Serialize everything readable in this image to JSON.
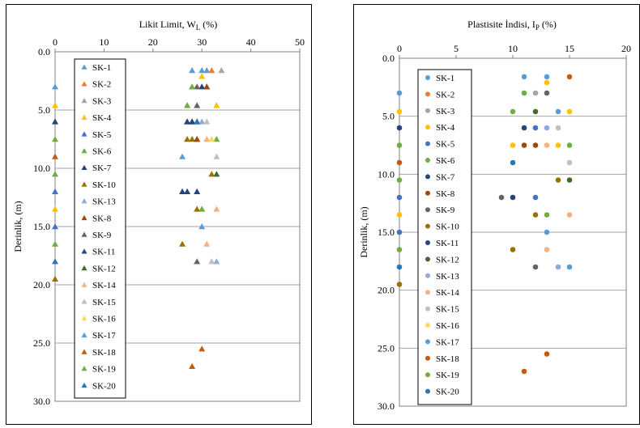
{
  "chart_data": [
    {
      "type": "scatter",
      "title": "Likit Limit, W",
      "title_sub": "L",
      "title_unit": " (%)",
      "ylabel": "Derinlik, (m)",
      "xlim": [
        0,
        50
      ],
      "ylim": [
        0,
        30
      ],
      "y_inverted": true,
      "x_axis_position": "top",
      "xticks": [
        "0",
        "10",
        "20",
        "30",
        "40",
        "50"
      ],
      "yticks": [
        "0.0",
        "5.0",
        "10.0",
        "15.0",
        "20.0",
        "25.0",
        "30.0"
      ],
      "grid": "horizontal",
      "legend_position": "left-inside",
      "marker": "triangle",
      "series": [
        {
          "name": "SK-1",
          "color": "#5b9bd5",
          "points": [
            [
              28,
              1.6
            ],
            [
              30,
              1.6
            ],
            [
              31,
              1.6
            ]
          ]
        },
        {
          "name": "SK-2",
          "color": "#ed7d31",
          "points": [
            [
              32,
              1.6
            ]
          ]
        },
        {
          "name": "SK-3",
          "color": "#a5a5a5",
          "points": [
            [
              34,
              1.6
            ]
          ]
        },
        {
          "name": "SK-4",
          "color": "#ffc000",
          "points": [
            [
              30,
              2.1
            ],
            [
              33,
              4.6
            ],
            [
              30,
              13.5
            ]
          ]
        },
        {
          "name": "SK-5",
          "color": "#4472c4",
          "points": [
            [
              27,
              6.0
            ],
            [
              28,
              6.0
            ],
            [
              31,
              3.0
            ]
          ]
        },
        {
          "name": "SK-6",
          "color": "#70ad47",
          "points": [
            [
              28,
              3.0
            ],
            [
              27,
              4.6
            ],
            [
              33,
              7.5
            ],
            [
              30,
              13.5
            ]
          ]
        },
        {
          "name": "SK-7",
          "color": "#264478",
          "points": [
            [
              30,
              3.0
            ],
            [
              27,
              6.0
            ],
            [
              29,
              6.0
            ],
            [
              27,
              12.0
            ],
            [
              26,
              12.0
            ]
          ]
        },
        {
          "name": "SK-10",
          "color": "#997300",
          "points": [
            [
              27,
              7.5
            ],
            [
              28,
              7.5
            ],
            [
              29,
              7.5
            ],
            [
              32,
              10.5
            ],
            [
              29,
              13.5
            ],
            [
              26,
              16.5
            ]
          ]
        },
        {
          "name": "SK-13",
          "color": "#8faadc",
          "points": [
            [
              30,
              6.0
            ],
            [
              33,
              18.0
            ]
          ]
        },
        {
          "name": "SK-8",
          "color": "#9e480e",
          "points": [
            [
              31,
              3.0
            ],
            [
              29,
              7.5
            ]
          ]
        },
        {
          "name": "SK-9",
          "color": "#636363",
          "points": [
            [
              29,
              3.0
            ],
            [
              29,
              4.6
            ],
            [
              29,
              18.0
            ]
          ]
        },
        {
          "name": "SK-11",
          "color": "#264478",
          "points": [
            [
              28,
              6.0
            ],
            [
              29,
              12.0
            ]
          ]
        },
        {
          "name": "SK-12",
          "color": "#43682b",
          "points": [
            [
              33,
              10.5
            ]
          ]
        },
        {
          "name": "SK-14",
          "color": "#f4b183",
          "points": [
            [
              31,
              7.5
            ],
            [
              33,
              13.5
            ],
            [
              31,
              16.5
            ]
          ]
        },
        {
          "name": "SK-15",
          "color": "#bfbfbf",
          "points": [
            [
              31,
              6.0
            ],
            [
              33,
              9.0
            ],
            [
              32,
              18.0
            ]
          ]
        },
        {
          "name": "SK-16",
          "color": "#ffd966",
          "points": [
            [
              32,
              7.5
            ]
          ]
        },
        {
          "name": "SK-17",
          "color": "#5b9bd5",
          "points": [
            [
              30,
              15.0
            ],
            [
              26,
              9.0
            ]
          ]
        },
        {
          "name": "SK-18",
          "color": "#c55a11",
          "points": [
            [
              30,
              25.5
            ],
            [
              28,
              27.0
            ]
          ]
        },
        {
          "name": "SK-19",
          "color": "#70ad47",
          "points": [
            [
              27,
              4.6
            ],
            [
              28,
              3.0
            ]
          ]
        },
        {
          "name": "SK-20",
          "color": "#2e75b6",
          "points": [
            [
              29,
              6.0
            ]
          ]
        }
      ],
      "axis_markers": [
        {
          "color": "#5b9bd5",
          "y": 3.0
        },
        {
          "color": "#ffc000",
          "y": 4.6
        },
        {
          "color": "#264478",
          "y": 6.0
        },
        {
          "color": "#70ad47",
          "y": 7.5
        },
        {
          "color": "#c55a11",
          "y": 9.0
        },
        {
          "color": "#70ad47",
          "y": 10.5
        },
        {
          "color": "#4472c4",
          "y": 12.0
        },
        {
          "color": "#ffc000",
          "y": 13.5
        },
        {
          "color": "#4472c4",
          "y": 15.0
        },
        {
          "color": "#70ad47",
          "y": 16.5
        },
        {
          "color": "#2e75b6",
          "y": 18.0
        },
        {
          "color": "#997300",
          "y": 19.5
        }
      ]
    },
    {
      "type": "scatter",
      "title": "Plastisite İndisi, I",
      "title_sub": "P",
      "title_unit": " (%)",
      "ylabel": "Derinlik, (m)",
      "xlim": [
        0,
        20
      ],
      "ylim": [
        0,
        30
      ],
      "y_inverted": true,
      "x_axis_position": "top",
      "xticks": [
        "0",
        "5",
        "10",
        "15",
        "20"
      ],
      "yticks": [
        "0.0",
        "5.0",
        "10.0",
        "15.0",
        "20.0",
        "25.0",
        "30.0"
      ],
      "grid": "horizontal",
      "legend_position": "left-inside",
      "marker": "circle",
      "series": [
        {
          "name": "SK-1",
          "color": "#5b9bd5",
          "points": [
            [
              11,
              1.6
            ],
            [
              13,
              1.6
            ]
          ]
        },
        {
          "name": "SK-2",
          "color": "#ed7d31",
          "points": []
        },
        {
          "name": "SK-3",
          "color": "#a5a5a5",
          "points": [
            [
              12,
              3.0
            ]
          ]
        },
        {
          "name": "SK-4",
          "color": "#ffc000",
          "points": [
            [
              13,
              2.1
            ],
            [
              15,
              4.6
            ],
            [
              10,
              7.5
            ],
            [
              14,
              7.5
            ]
          ]
        },
        {
          "name": "SK-5",
          "color": "#4472c4",
          "points": [
            [
              12,
              6.0
            ],
            [
              12,
              12.0
            ]
          ]
        },
        {
          "name": "SK-6",
          "color": "#70ad47",
          "points": [
            [
              11,
              3.0
            ],
            [
              10,
              4.6
            ],
            [
              13,
              13.5
            ]
          ]
        },
        {
          "name": "SK-7",
          "color": "#264478",
          "points": [
            [
              11,
              6.0
            ],
            [
              10,
              12.0
            ]
          ]
        },
        {
          "name": "SK-8",
          "color": "#9e480e",
          "points": [
            [
              11,
              7.5
            ],
            [
              12,
              7.5
            ]
          ]
        },
        {
          "name": "SK-9",
          "color": "#636363",
          "points": [
            [
              13,
              3.0
            ],
            [
              9,
              12.0
            ],
            [
              12,
              18.0
            ]
          ]
        },
        {
          "name": "SK-10",
          "color": "#997300",
          "points": [
            [
              14,
              10.5
            ],
            [
              12,
              13.5
            ],
            [
              10,
              16.5
            ]
          ]
        },
        {
          "name": "SK-11",
          "color": "#264478",
          "points": []
        },
        {
          "name": "SK-12",
          "color": "#43682b",
          "points": [
            [
              12,
              4.6
            ],
            [
              15,
              10.5
            ]
          ]
        },
        {
          "name": "SK-13",
          "color": "#8faadc",
          "points": [
            [
              13,
              6.0
            ],
            [
              14,
              18.0
            ]
          ]
        },
        {
          "name": "SK-14",
          "color": "#f4b183",
          "points": [
            [
              13,
              7.5
            ],
            [
              15,
              13.5
            ],
            [
              13,
              16.5
            ]
          ]
        },
        {
          "name": "SK-15",
          "color": "#bfbfbf",
          "points": [
            [
              14,
              6.0
            ],
            [
              15,
              9.0
            ]
          ]
        },
        {
          "name": "SK-16",
          "color": "#ffd966",
          "points": []
        },
        {
          "name": "SK-17",
          "color": "#5b9bd5",
          "points": [
            [
              14,
              4.6
            ],
            [
              13,
              15.0
            ],
            [
              15,
              18.0
            ]
          ]
        },
        {
          "name": "SK-18",
          "color": "#c55a11",
          "points": [
            [
              15,
              1.6
            ],
            [
              13,
              25.5
            ],
            [
              11,
              27.0
            ]
          ]
        },
        {
          "name": "SK-19",
          "color": "#70ad47",
          "points": [
            [
              15,
              7.5
            ]
          ]
        },
        {
          "name": "SK-20",
          "color": "#2e75b6",
          "points": [
            [
              10,
              9.0
            ]
          ]
        }
      ],
      "axis_markers": [
        {
          "color": "#5b9bd5",
          "y": 3.0
        },
        {
          "color": "#ffc000",
          "y": 4.6
        },
        {
          "color": "#264478",
          "y": 6.0
        },
        {
          "color": "#70ad47",
          "y": 7.5
        },
        {
          "color": "#c55a11",
          "y": 9.0
        },
        {
          "color": "#70ad47",
          "y": 10.5
        },
        {
          "color": "#4472c4",
          "y": 12.0
        },
        {
          "color": "#ffc000",
          "y": 13.5
        },
        {
          "color": "#4472c4",
          "y": 15.0
        },
        {
          "color": "#70ad47",
          "y": 16.5
        },
        {
          "color": "#2e75b6",
          "y": 18.0
        },
        {
          "color": "#997300",
          "y": 19.5
        }
      ]
    }
  ]
}
